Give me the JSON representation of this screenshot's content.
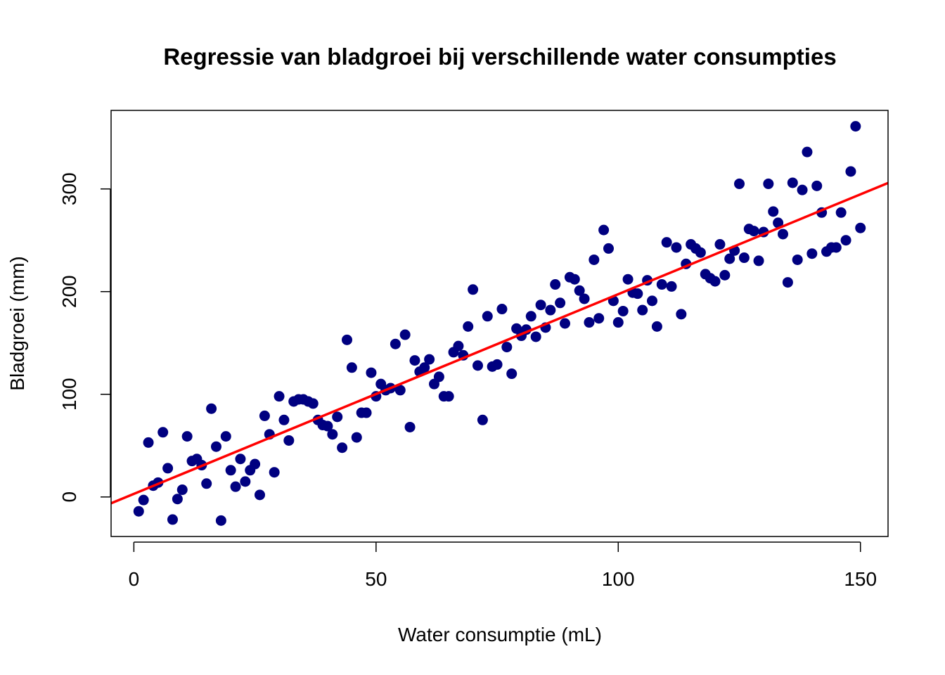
{
  "chart_data": {
    "type": "scatter",
    "title": "Regressie van bladgroei bij verschillende water consumpties",
    "xlabel": "Water consumptie (mL)",
    "ylabel": "Bladgroei (mm)",
    "xlim": [
      -4.7,
      155.7
    ],
    "ylim": [
      -38.5,
      376.5
    ],
    "x_ticks": [
      0,
      50,
      100,
      150
    ],
    "y_ticks": [
      0,
      100,
      200,
      300
    ],
    "x_tick_labels": [
      "0",
      "50",
      "100",
      "150"
    ],
    "y_tick_labels": [
      "0",
      "100",
      "200",
      "300"
    ],
    "grid": false,
    "point_color": "#000080",
    "line_color": "#ff0000",
    "regression_line": {
      "intercept": 3.0,
      "slope": 1.945
    },
    "points": [
      [
        1,
        -14
      ],
      [
        2,
        -3
      ],
      [
        3,
        53
      ],
      [
        4,
        11
      ],
      [
        5,
        14
      ],
      [
        6,
        63
      ],
      [
        7,
        28
      ],
      [
        8,
        -22
      ],
      [
        9,
        -2
      ],
      [
        10,
        7
      ],
      [
        11,
        59
      ],
      [
        12,
        35
      ],
      [
        13,
        37
      ],
      [
        14,
        31
      ],
      [
        15,
        13
      ],
      [
        16,
        86
      ],
      [
        17,
        49
      ],
      [
        18,
        -23
      ],
      [
        19,
        59
      ],
      [
        20,
        26
      ],
      [
        21,
        10
      ],
      [
        22,
        37
      ],
      [
        23,
        15
      ],
      [
        24,
        26
      ],
      [
        25,
        32
      ],
      [
        26,
        2
      ],
      [
        27,
        79
      ],
      [
        28,
        61
      ],
      [
        29,
        24
      ],
      [
        30,
        98
      ],
      [
        31,
        75
      ],
      [
        32,
        55
      ],
      [
        33,
        93
      ],
      [
        34,
        95
      ],
      [
        35,
        95
      ],
      [
        36,
        93
      ],
      [
        37,
        91
      ],
      [
        38,
        75
      ],
      [
        39,
        70
      ],
      [
        40,
        69
      ],
      [
        41,
        61
      ],
      [
        42,
        78
      ],
      [
        43,
        48
      ],
      [
        44,
        153
      ],
      [
        45,
        126
      ],
      [
        46,
        58
      ],
      [
        47,
        82
      ],
      [
        48,
        82
      ],
      [
        49,
        121
      ],
      [
        50,
        98
      ],
      [
        51,
        110
      ],
      [
        52,
        104
      ],
      [
        53,
        106
      ],
      [
        54,
        149
      ],
      [
        55,
        104
      ],
      [
        56,
        158
      ],
      [
        57,
        68
      ],
      [
        58,
        133
      ],
      [
        59,
        122
      ],
      [
        60,
        126
      ],
      [
        61,
        134
      ],
      [
        62,
        110
      ],
      [
        63,
        117
      ],
      [
        64,
        98
      ],
      [
        65,
        98
      ],
      [
        66,
        141
      ],
      [
        67,
        147
      ],
      [
        68,
        138
      ],
      [
        69,
        166
      ],
      [
        70,
        202
      ],
      [
        71,
        128
      ],
      [
        72,
        75
      ],
      [
        73,
        176
      ],
      [
        74,
        127
      ],
      [
        75,
        129
      ],
      [
        76,
        183
      ],
      [
        77,
        146
      ],
      [
        78,
        120
      ],
      [
        79,
        164
      ],
      [
        80,
        157
      ],
      [
        81,
        163
      ],
      [
        82,
        176
      ],
      [
        83,
        156
      ],
      [
        84,
        187
      ],
      [
        85,
        165
      ],
      [
        86,
        182
      ],
      [
        87,
        207
      ],
      [
        88,
        189
      ],
      [
        89,
        169
      ],
      [
        90,
        214
      ],
      [
        91,
        212
      ],
      [
        92,
        201
      ],
      [
        93,
        193
      ],
      [
        94,
        170
      ],
      [
        95,
        231
      ],
      [
        96,
        174
      ],
      [
        97,
        260
      ],
      [
        98,
        242
      ],
      [
        99,
        191
      ],
      [
        100,
        170
      ],
      [
        101,
        181
      ],
      [
        102,
        212
      ],
      [
        103,
        199
      ],
      [
        104,
        198
      ],
      [
        105,
        182
      ],
      [
        106,
        211
      ],
      [
        107,
        191
      ],
      [
        108,
        166
      ],
      [
        109,
        207
      ],
      [
        110,
        248
      ],
      [
        111,
        205
      ],
      [
        112,
        243
      ],
      [
        113,
        178
      ],
      [
        114,
        227
      ],
      [
        115,
        246
      ],
      [
        116,
        242
      ],
      [
        117,
        238
      ],
      [
        118,
        217
      ],
      [
        119,
        213
      ],
      [
        120,
        210
      ],
      [
        121,
        246
      ],
      [
        122,
        216
      ],
      [
        123,
        232
      ],
      [
        124,
        240
      ],
      [
        125,
        305
      ],
      [
        126,
        233
      ],
      [
        127,
        261
      ],
      [
        128,
        259
      ],
      [
        129,
        230
      ],
      [
        130,
        258
      ],
      [
        131,
        305
      ],
      [
        132,
        278
      ],
      [
        133,
        267
      ],
      [
        134,
        256
      ],
      [
        135,
        209
      ],
      [
        136,
        306
      ],
      [
        137,
        231
      ],
      [
        138,
        299
      ],
      [
        139,
        336
      ],
      [
        140,
        237
      ],
      [
        141,
        303
      ],
      [
        142,
        277
      ],
      [
        143,
        239
      ],
      [
        144,
        243
      ],
      [
        145,
        243
      ],
      [
        146,
        277
      ],
      [
        147,
        250
      ],
      [
        148,
        317
      ],
      [
        149,
        361
      ],
      [
        150,
        262
      ]
    ]
  }
}
